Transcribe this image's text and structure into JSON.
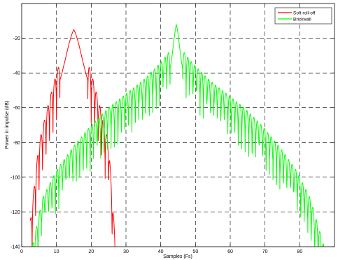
{
  "chart_data": {
    "type": "line",
    "title": "",
    "xlabel": "Samples (Fs)",
    "ylabel": "Power in impulse (dB)",
    "xlim": [
      0,
      90
    ],
    "ylim": [
      -140,
      0
    ],
    "xticks": [
      0,
      10,
      20,
      30,
      40,
      50,
      60,
      70,
      80
    ],
    "yticks": [
      -140,
      -120,
      -100,
      -80,
      -60,
      -40,
      -20
    ],
    "grid": true,
    "grid_style": "dashed",
    "legend_position": "top-right",
    "series": [
      {
        "name": "Soft roll-off",
        "color": "#ff0000",
        "center": 15,
        "peak": -15,
        "x_start": 2.5,
        "x_end": 27,
        "side_gap": 4,
        "lobe_period": 1,
        "envelope_points": [
          [
            2.5,
            -125
          ],
          [
            5,
            -80
          ],
          [
            8,
            -55
          ],
          [
            10,
            -40
          ],
          [
            12,
            -28
          ],
          [
            13.5,
            -21
          ],
          [
            15,
            -15
          ],
          [
            16.5,
            -21
          ],
          [
            18,
            -28
          ],
          [
            20,
            -40
          ],
          [
            22,
            -55
          ],
          [
            25,
            -80
          ],
          [
            27,
            -140
          ]
        ],
        "null_depth": [
          18,
          30
        ]
      },
      {
        "name": "Brickwall",
        "color": "#00ff00",
        "center": 44.5,
        "peak": -12,
        "x_start": 3,
        "x_end": 87,
        "side_gap": 1.8,
        "lobe_period": 1,
        "envelope_points": [
          [
            3,
            -140
          ],
          [
            6,
            -112
          ],
          [
            10,
            -96
          ],
          [
            15,
            -82
          ],
          [
            20,
            -70
          ],
          [
            25,
            -60
          ],
          [
            30,
            -52
          ],
          [
            35,
            -44
          ],
          [
            40,
            -34
          ],
          [
            42.7,
            -27
          ],
          [
            44.5,
            -12
          ],
          [
            46.3,
            -27
          ],
          [
            49,
            -34
          ],
          [
            54,
            -44
          ],
          [
            59,
            -52
          ],
          [
            64,
            -60
          ],
          [
            69,
            -70
          ],
          [
            74,
            -82
          ],
          [
            79,
            -96
          ],
          [
            83,
            -112
          ],
          [
            87,
            -140
          ]
        ],
        "null_depth": [
          10,
          26
        ]
      }
    ]
  }
}
